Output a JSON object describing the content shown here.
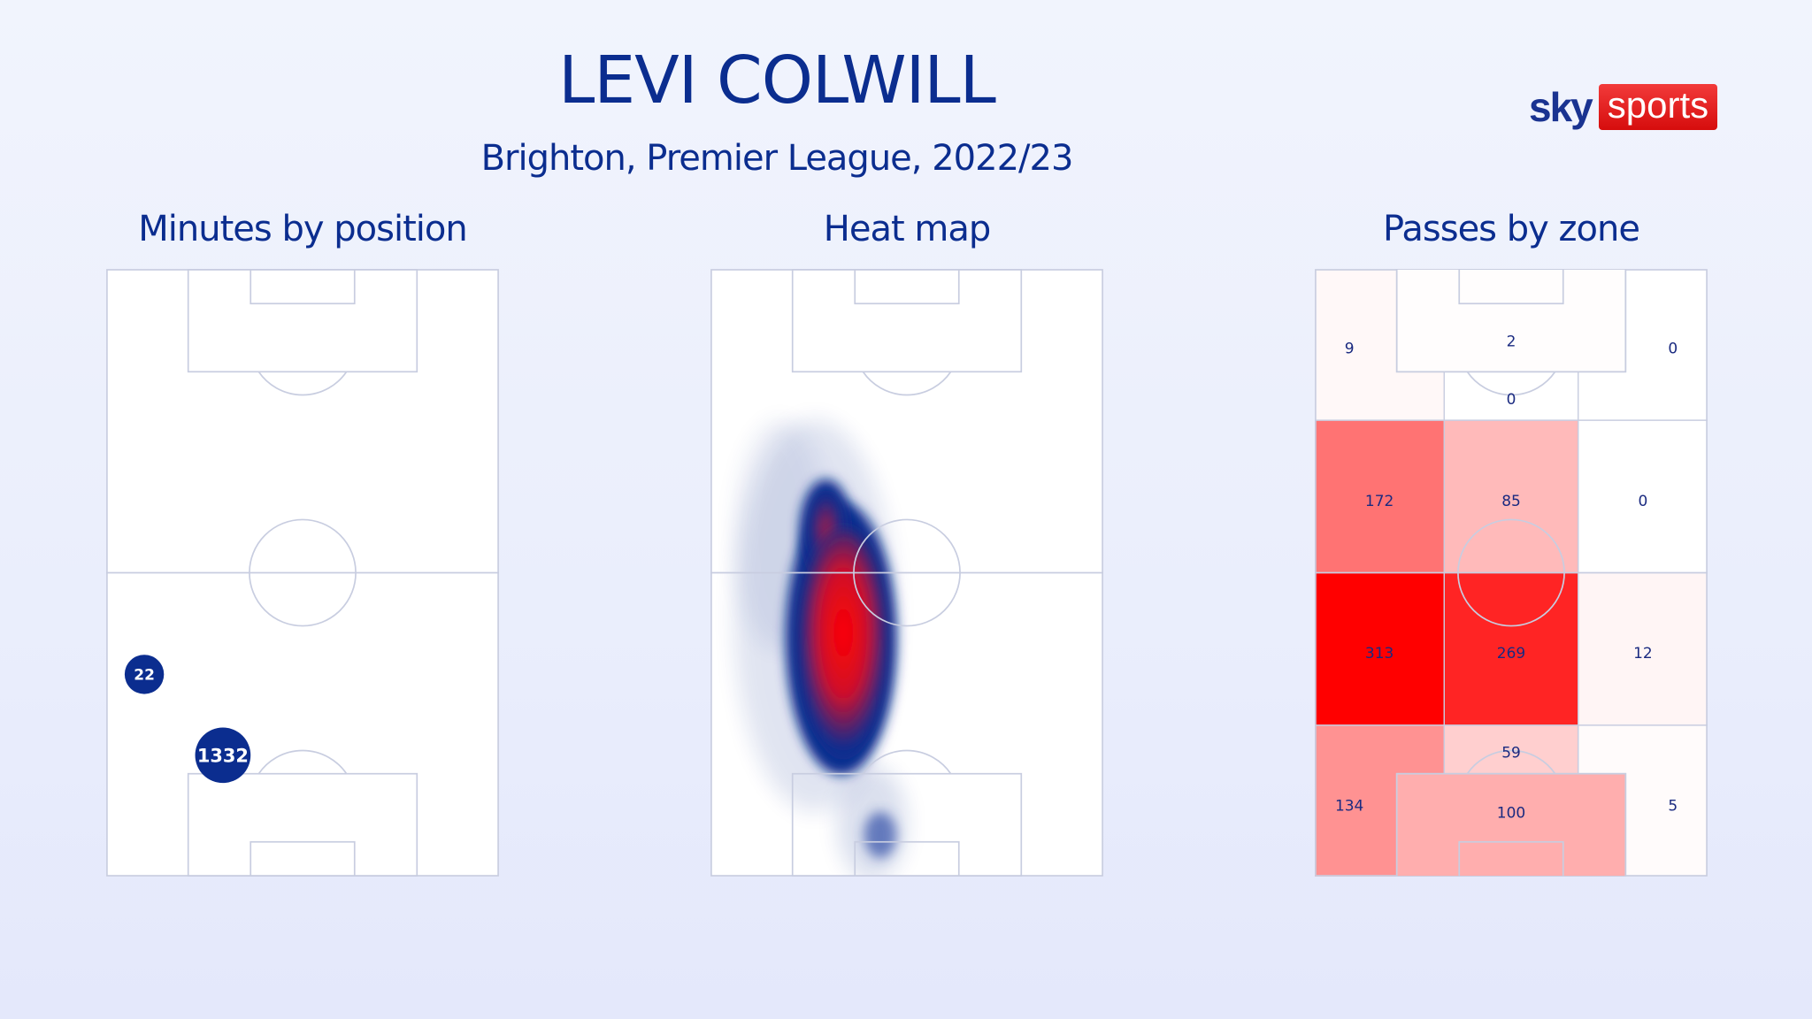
{
  "header": {
    "title": "LEVI COLWILL",
    "subtitle": "Brighton, Premier League, 2022/23"
  },
  "logo": {
    "sky": "sky",
    "sports": "sports",
    "brand_red": "#e10a0a",
    "brand_blue": "#1a3391"
  },
  "colors": {
    "text": "#0b2d8f",
    "pitch_line": "#c8cde0",
    "bubble": "#0b2d8f",
    "heat_high": "#ff0000",
    "heat_low": "#0b2d8f"
  },
  "chart_data": [
    {
      "type": "scatter",
      "title": "Minutes by position",
      "points": [
        {
          "position": "left wing-back",
          "minutes": 22,
          "label": "22"
        },
        {
          "position": "left centre-back",
          "minutes": 1332,
          "label": "1332"
        }
      ]
    },
    {
      "type": "heatmap",
      "title": "Heat map"
    },
    {
      "type": "heatmap",
      "title": "Passes by zone",
      "zones": [
        {
          "zone": "final third left",
          "value": 9,
          "label": "9"
        },
        {
          "zone": "opposition box",
          "value": 2,
          "label": "2"
        },
        {
          "zone": "final third right",
          "value": 0,
          "label": "0"
        },
        {
          "zone": "final third centre (outside box)",
          "value": 0,
          "label": "0"
        },
        {
          "zone": "attacking middle left",
          "value": 172,
          "label": "172"
        },
        {
          "zone": "attacking middle centre",
          "value": 85,
          "label": "85"
        },
        {
          "zone": "attacking middle right",
          "value": 0,
          "label": "0"
        },
        {
          "zone": "defensive middle left",
          "value": 313,
          "label": "313"
        },
        {
          "zone": "defensive middle centre",
          "value": 269,
          "label": "269"
        },
        {
          "zone": "defensive middle right",
          "value": 12,
          "label": "12"
        },
        {
          "zone": "defensive third centre (outside box)",
          "value": 59,
          "label": "59"
        },
        {
          "zone": "defensive third left",
          "value": 134,
          "label": "134"
        },
        {
          "zone": "own box",
          "value": 100,
          "label": "100"
        },
        {
          "zone": "defensive third right",
          "value": 5,
          "label": "5"
        }
      ]
    }
  ]
}
